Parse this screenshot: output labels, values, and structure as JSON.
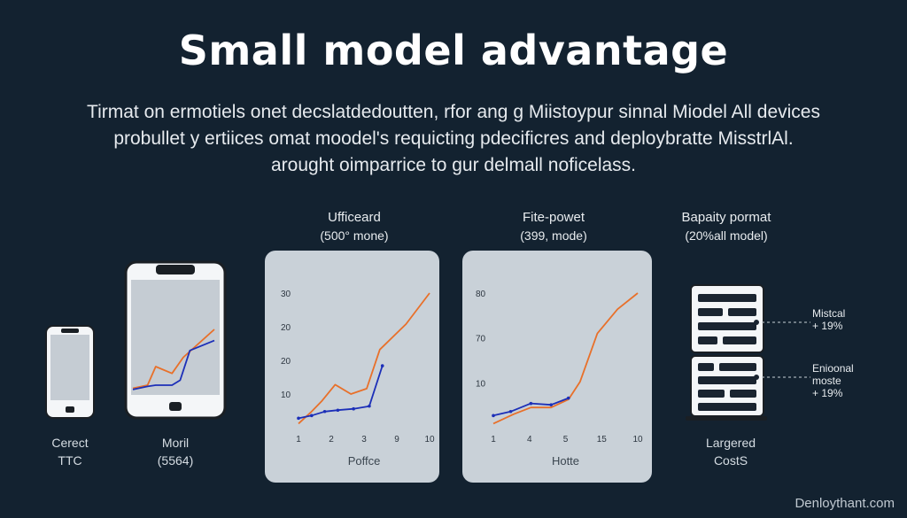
{
  "title": "Small model advantage",
  "subtitle": [
    "Tirmat on ermotiels onet decslatdedoutten, rfor ang g Miistoypur sinnal Miodel All devices",
    "probullet y ertiices omat moodel's requicting pdecificres and deploybratte MisstrlAl.",
    "arought oimparrice to gur delmall noficelass."
  ],
  "columns": [
    {
      "heading": "Ufficeard",
      "sub": "(500° mone)"
    },
    {
      "heading": "Fite-powet",
      "sub": "(399, mode)"
    },
    {
      "heading": "Bapaity pormat",
      "sub": "(20%all model)"
    }
  ],
  "devices": {
    "phone_caption": [
      "Cerect",
      "TTC"
    ],
    "tablet_caption": [
      "Moril",
      "(5564)"
    ]
  },
  "server": {
    "label1": [
      "Mistcal",
      "+ 19%"
    ],
    "label2": [
      "Enioonal",
      "moste",
      "+ 19%"
    ],
    "caption": [
      "Largered",
      "CostS"
    ]
  },
  "colors": {
    "orange": "#e8702a",
    "blue": "#1c2fb8",
    "panel": "#c9d1d8"
  },
  "chart_data": [
    {
      "type": "line",
      "x": [
        "1",
        "2",
        "3",
        "9",
        "10"
      ],
      "xlabel": "Poffce",
      "y_ticks": [
        "10",
        "20",
        "20",
        "30"
      ],
      "series": [
        {
          "color": "#e8702a",
          "points": [
            [
              0.0,
              0.03
            ],
            [
              0.1,
              0.12
            ],
            [
              0.18,
              0.2
            ],
            [
              0.28,
              0.32
            ],
            [
              0.4,
              0.25
            ],
            [
              0.52,
              0.29
            ],
            [
              0.62,
              0.58
            ],
            [
              0.82,
              0.77
            ],
            [
              1.0,
              1.0
            ]
          ]
        },
        {
          "color": "#1c2fb8",
          "points": [
            [
              0.0,
              0.07
            ],
            [
              0.1,
              0.09
            ],
            [
              0.2,
              0.12
            ],
            [
              0.3,
              0.13
            ],
            [
              0.42,
              0.14
            ],
            [
              0.54,
              0.16
            ],
            [
              0.64,
              0.46
            ]
          ]
        }
      ]
    },
    {
      "type": "line",
      "x": [
        "1",
        "4",
        "5",
        "15",
        "10"
      ],
      "xlabel": "Hotte",
      "y_ticks": [
        "10",
        "70",
        "80"
      ],
      "series": [
        {
          "color": "#e8702a",
          "points": [
            [
              0.0,
              0.03
            ],
            [
              0.14,
              0.1
            ],
            [
              0.26,
              0.15
            ],
            [
              0.4,
              0.15
            ],
            [
              0.52,
              0.21
            ],
            [
              0.6,
              0.34
            ],
            [
              0.72,
              0.7
            ],
            [
              0.86,
              0.88
            ],
            [
              1.0,
              1.0
            ]
          ]
        },
        {
          "color": "#1c2fb8",
          "points": [
            [
              0.0,
              0.09
            ],
            [
              0.12,
              0.12
            ],
            [
              0.26,
              0.18
            ],
            [
              0.4,
              0.17
            ],
            [
              0.52,
              0.22
            ]
          ]
        }
      ]
    }
  ],
  "tablet_chart": {
    "series": [
      {
        "color": "#e8702a",
        "points": [
          [
            0.0,
            0.05
          ],
          [
            0.18,
            0.1
          ],
          [
            0.28,
            0.4
          ],
          [
            0.48,
            0.29
          ],
          [
            0.62,
            0.55
          ],
          [
            1.0,
            1.0
          ]
        ]
      },
      {
        "color": "#1c2fb8",
        "points": [
          [
            0.0,
            0.03
          ],
          [
            0.18,
            0.08
          ],
          [
            0.28,
            0.1
          ],
          [
            0.48,
            0.1
          ],
          [
            0.58,
            0.18
          ],
          [
            0.7,
            0.66
          ],
          [
            1.0,
            0.82
          ]
        ]
      }
    ]
  },
  "footer": "Denloythant.com"
}
